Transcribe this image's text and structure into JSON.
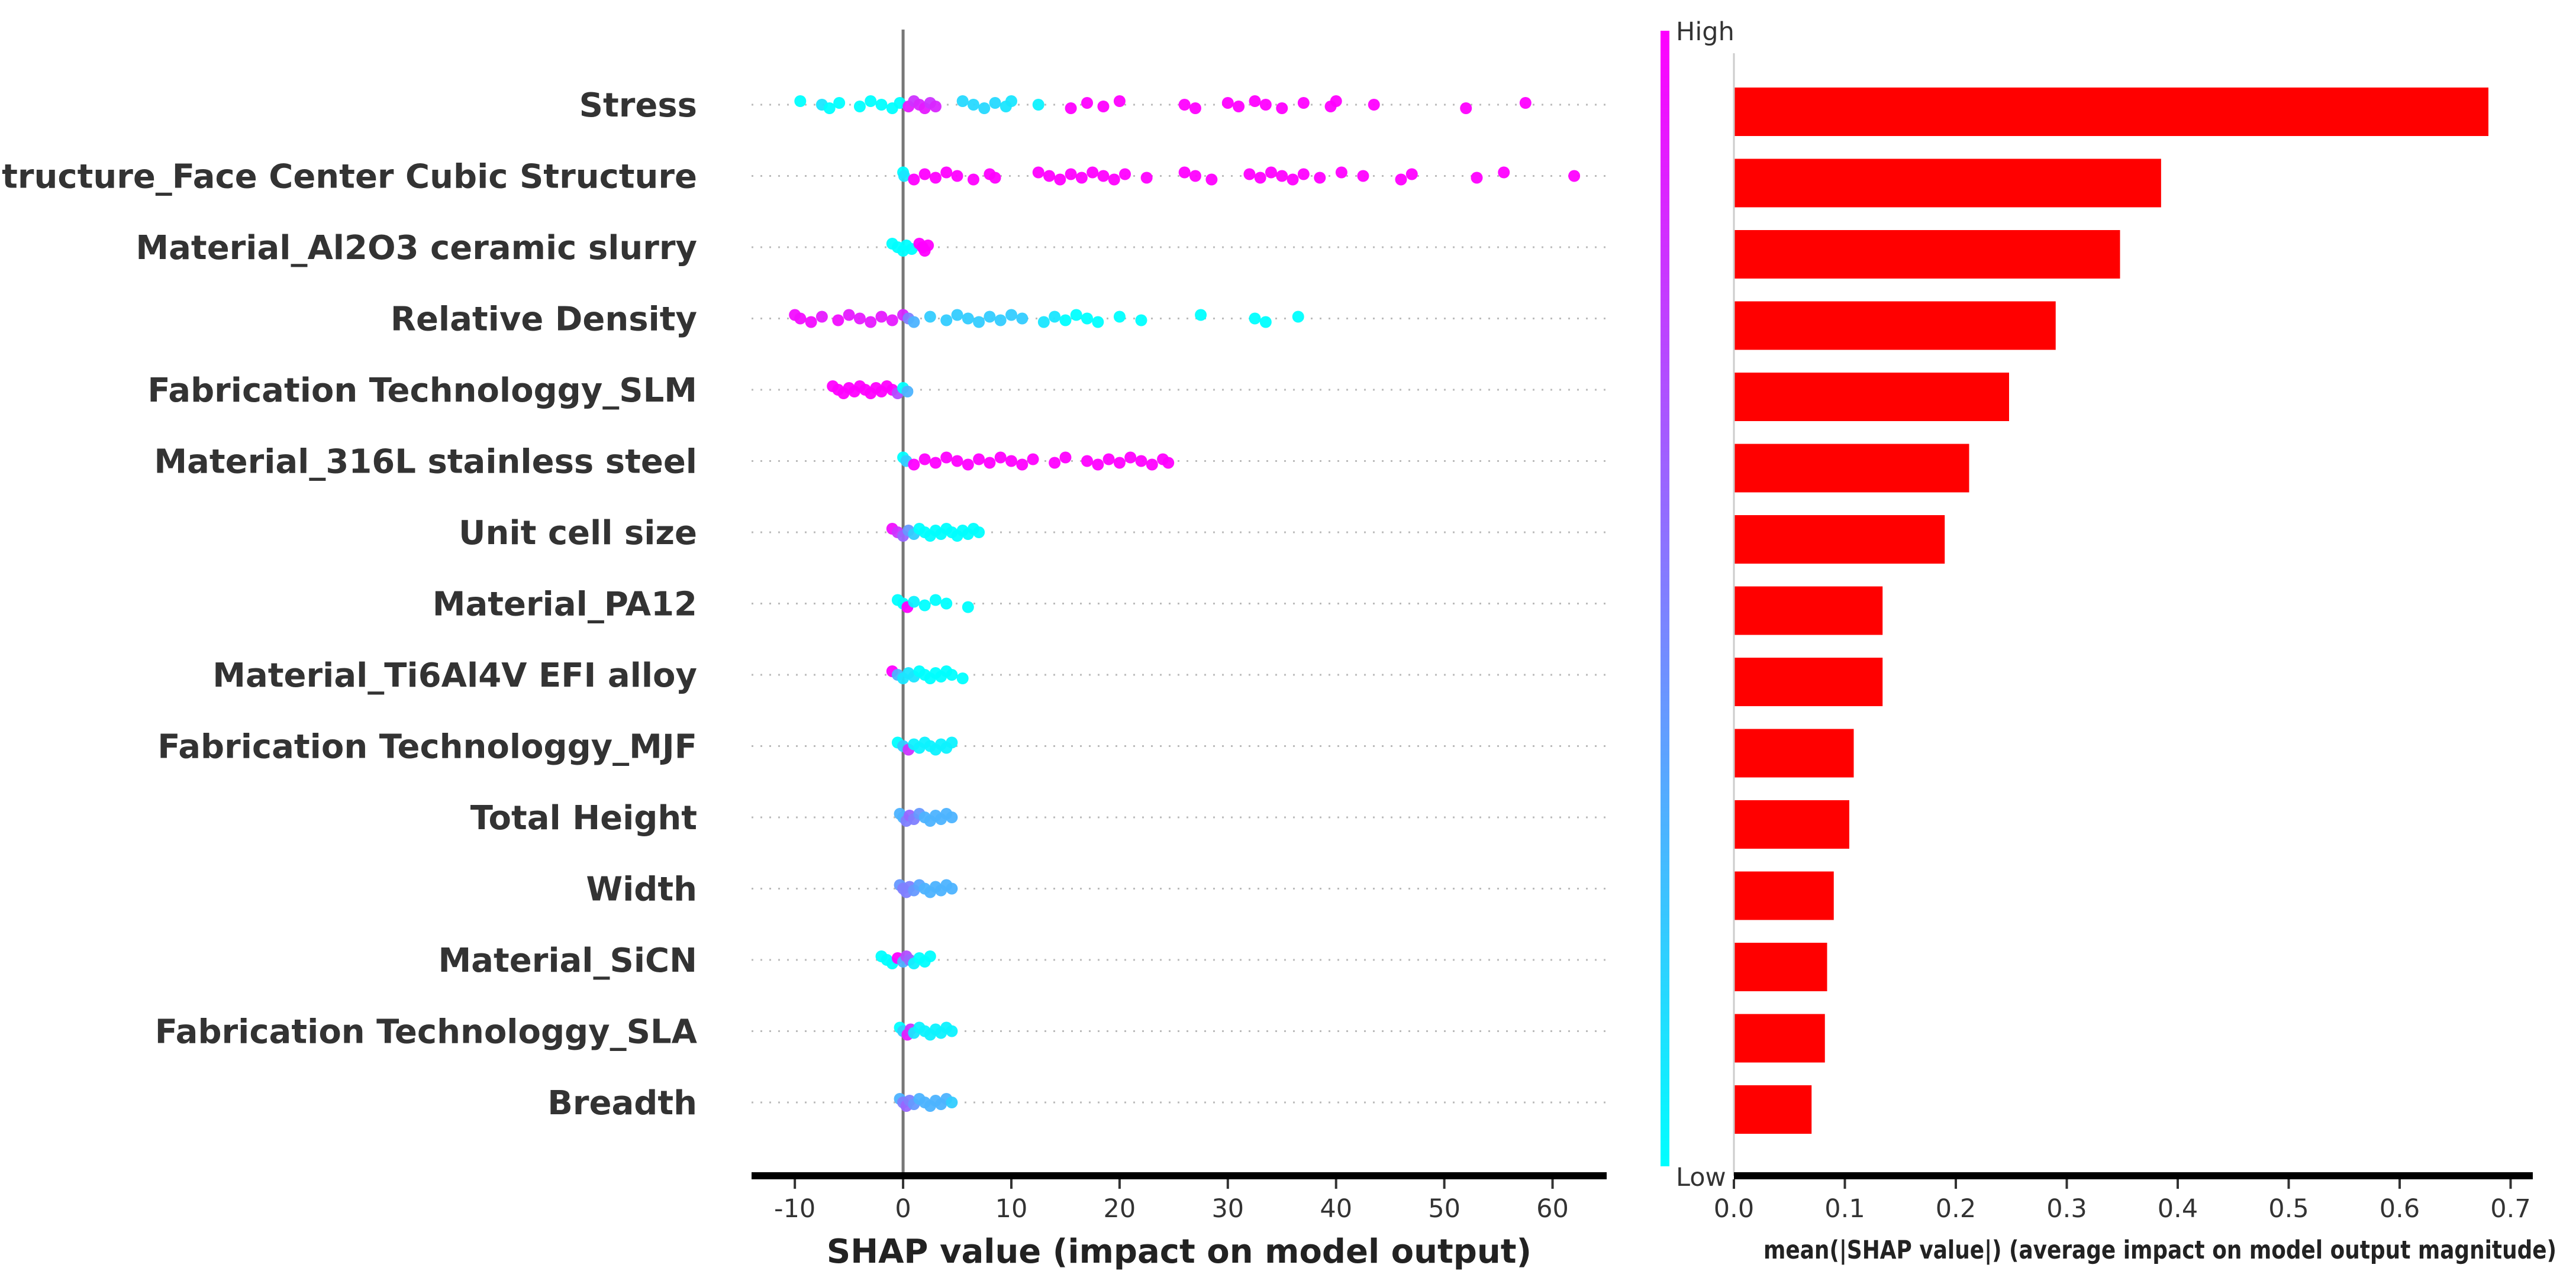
{
  "chart_data": [
    {
      "type": "scatter",
      "subtype": "shap-beeswarm",
      "title": "",
      "xlabel": "SHAP value (impact on model output)",
      "ylabel": "",
      "xlim": [
        -14,
        65
      ],
      "xticks": [
        -10,
        0,
        10,
        20,
        30,
        40,
        50,
        60
      ],
      "features": [
        "Stress",
        "Structure_Face Center Cubic Structure",
        "Material_Al2O3 ceramic slurry",
        "Relative Density",
        "Fabrication Technologgy_SLM",
        "Material_316L stainless steel",
        "Unit cell size",
        "Material_PA12",
        "Material_Ti6Al4V EFI alloy",
        "Fabrication Technologgy_MJF",
        "Total Height",
        "Width",
        "Material_SiCN",
        "Fabrication Technologgy_SLA",
        "Breadth"
      ],
      "points": [
        [
          [
            -9.5,
            0
          ],
          [
            -7.5,
            0.1
          ],
          [
            -6.8,
            0
          ],
          [
            -5.9,
            0
          ],
          [
            -4,
            0
          ],
          [
            -3,
            0
          ],
          [
            -2,
            0
          ],
          [
            -1,
            0
          ],
          [
            -0.3,
            0
          ],
          [
            0.5,
            0.9
          ],
          [
            1,
            0.8
          ],
          [
            1.5,
            0.85
          ],
          [
            2,
            0.9
          ],
          [
            2.5,
            0.8
          ],
          [
            3,
            0.85
          ],
          [
            5.5,
            0.15
          ],
          [
            6.5,
            0.15
          ],
          [
            7.5,
            0.15
          ],
          [
            8.5,
            0.15
          ],
          [
            9.5,
            0.1
          ],
          [
            10,
            0.1
          ],
          [
            12.5,
            0.05
          ],
          [
            15.5,
            1
          ],
          [
            17,
            1
          ],
          [
            18.5,
            1
          ],
          [
            20,
            1
          ],
          [
            26,
            1
          ],
          [
            27,
            1
          ],
          [
            30,
            1
          ],
          [
            31,
            1
          ],
          [
            32.5,
            1
          ],
          [
            33.5,
            1
          ],
          [
            35,
            1
          ],
          [
            37,
            1
          ],
          [
            39.5,
            1
          ],
          [
            40,
            1
          ],
          [
            43.5,
            1
          ],
          [
            52,
            1
          ],
          [
            57.5,
            1
          ]
        ],
        [
          [
            0,
            0
          ],
          [
            0.1,
            0.1
          ],
          [
            1,
            1
          ],
          [
            2,
            1
          ],
          [
            3,
            1
          ],
          [
            4,
            1
          ],
          [
            5,
            1
          ],
          [
            6.5,
            1
          ],
          [
            8,
            1
          ],
          [
            8.5,
            1
          ],
          [
            12.5,
            1
          ],
          [
            13.5,
            1
          ],
          [
            14.5,
            1
          ],
          [
            15.5,
            1
          ],
          [
            16.5,
            1
          ],
          [
            17.5,
            1
          ],
          [
            18.5,
            1
          ],
          [
            19.5,
            1
          ],
          [
            20.5,
            1
          ],
          [
            22.5,
            1
          ],
          [
            26,
            1
          ],
          [
            27,
            1
          ],
          [
            28.5,
            1
          ],
          [
            32,
            1
          ],
          [
            33,
            1
          ],
          [
            34,
            1
          ],
          [
            35,
            1
          ],
          [
            36,
            1
          ],
          [
            37,
            1
          ],
          [
            38.5,
            1
          ],
          [
            40.5,
            1
          ],
          [
            42.5,
            1
          ],
          [
            46,
            1
          ],
          [
            47,
            1
          ],
          [
            53,
            1
          ],
          [
            55.5,
            1
          ],
          [
            62,
            1
          ]
        ],
        [
          [
            -1,
            0
          ],
          [
            -0.5,
            0
          ],
          [
            0,
            0
          ],
          [
            0.3,
            0
          ],
          [
            0.8,
            0
          ],
          [
            1.5,
            1
          ],
          [
            1.8,
            1
          ],
          [
            2,
            1
          ],
          [
            2.3,
            1
          ]
        ],
        [
          [
            -10,
            0.95
          ],
          [
            -9.5,
            0.95
          ],
          [
            -8.5,
            0.95
          ],
          [
            -7.5,
            0.9
          ],
          [
            -6,
            0.95
          ],
          [
            -5,
            0.9
          ],
          [
            -4,
            0.9
          ],
          [
            -3,
            0.9
          ],
          [
            -2,
            0.9
          ],
          [
            -1,
            0.9
          ],
          [
            0,
            0.85
          ],
          [
            0.5,
            0.5
          ],
          [
            1,
            0.3
          ],
          [
            2.5,
            0.2
          ],
          [
            4,
            0.2
          ],
          [
            5,
            0.2
          ],
          [
            6,
            0.2
          ],
          [
            7,
            0.2
          ],
          [
            8,
            0.2
          ],
          [
            9,
            0.2
          ],
          [
            10,
            0.2
          ],
          [
            11,
            0.2
          ],
          [
            13,
            0.1
          ],
          [
            14,
            0.1
          ],
          [
            15,
            0
          ],
          [
            16,
            0
          ],
          [
            17,
            0
          ],
          [
            18,
            0
          ],
          [
            20,
            0
          ],
          [
            22,
            0
          ],
          [
            27.5,
            0
          ],
          [
            32.5,
            0
          ],
          [
            33.5,
            0
          ],
          [
            36.5,
            0
          ]
        ],
        [
          [
            -6.5,
            1
          ],
          [
            -6,
            1
          ],
          [
            -5.5,
            1
          ],
          [
            -5,
            1
          ],
          [
            -4.5,
            1
          ],
          [
            -4,
            1
          ],
          [
            -3.5,
            1
          ],
          [
            -3,
            1
          ],
          [
            -2.5,
            1
          ],
          [
            -2,
            1
          ],
          [
            -1.5,
            1
          ],
          [
            -1,
            1
          ],
          [
            -0.5,
            0.7
          ],
          [
            0,
            0
          ],
          [
            0.4,
            0.3
          ]
        ],
        [
          [
            0,
            0
          ],
          [
            0.3,
            0.2
          ],
          [
            1,
            1
          ],
          [
            2,
            1
          ],
          [
            3,
            1
          ],
          [
            4,
            1
          ],
          [
            5,
            1
          ],
          [
            6,
            1
          ],
          [
            7,
            1
          ],
          [
            8,
            1
          ],
          [
            9,
            1
          ],
          [
            10,
            1
          ],
          [
            11,
            1
          ],
          [
            12,
            1
          ],
          [
            14,
            1
          ],
          [
            15,
            1
          ],
          [
            17,
            1
          ],
          [
            18,
            1
          ],
          [
            19,
            1
          ],
          [
            20,
            1
          ],
          [
            21,
            1
          ],
          [
            22,
            1
          ],
          [
            23,
            1
          ],
          [
            24,
            1
          ],
          [
            24.5,
            1
          ]
        ],
        [
          [
            -1,
            0.95
          ],
          [
            -0.5,
            0.8
          ],
          [
            0,
            0.6
          ],
          [
            0.5,
            0.4
          ],
          [
            1,
            0.2
          ],
          [
            1.5,
            0
          ],
          [
            2,
            0
          ],
          [
            2.5,
            0
          ],
          [
            3,
            0
          ],
          [
            3.5,
            0
          ],
          [
            4,
            0
          ],
          [
            4.5,
            0
          ],
          [
            5,
            0
          ],
          [
            5.5,
            0
          ],
          [
            6,
            0
          ],
          [
            6.5,
            0
          ],
          [
            7,
            0
          ]
        ],
        [
          [
            -0.5,
            0
          ],
          [
            0,
            0
          ],
          [
            0.4,
            1
          ],
          [
            1,
            0.05
          ],
          [
            2,
            0
          ],
          [
            3,
            0
          ],
          [
            4,
            0
          ],
          [
            6,
            0
          ]
        ],
        [
          [
            -1,
            1
          ],
          [
            -0.5,
            0.3
          ],
          [
            0,
            0.1
          ],
          [
            0.5,
            0.1
          ],
          [
            1,
            0.1
          ],
          [
            1.5,
            0
          ],
          [
            2,
            0
          ],
          [
            2.5,
            0
          ],
          [
            3,
            0
          ],
          [
            3.5,
            0
          ],
          [
            4,
            0
          ],
          [
            4.5,
            0
          ],
          [
            5.5,
            0
          ]
        ],
        [
          [
            -0.5,
            0
          ],
          [
            0,
            0.2
          ],
          [
            0.5,
            0.8
          ],
          [
            1,
            0.05
          ],
          [
            1.5,
            0.05
          ],
          [
            2,
            0.05
          ],
          [
            2.5,
            0.05
          ],
          [
            3,
            0.05
          ],
          [
            3.5,
            0.05
          ],
          [
            4,
            0.05
          ],
          [
            4.5,
            0.05
          ]
        ],
        [
          [
            -0.3,
            0.3
          ],
          [
            0,
            0.3
          ],
          [
            0.3,
            0.5
          ],
          [
            0.6,
            0.6
          ],
          [
            1,
            0.5
          ],
          [
            1.5,
            0.4
          ],
          [
            2,
            0.3
          ],
          [
            2.5,
            0.3
          ],
          [
            3,
            0.3
          ],
          [
            3.5,
            0.3
          ],
          [
            4,
            0.3
          ],
          [
            4.5,
            0.3
          ]
        ],
        [
          [
            -0.3,
            0.4
          ],
          [
            0,
            0.5
          ],
          [
            0.3,
            0.5
          ],
          [
            0.6,
            0.5
          ],
          [
            1,
            0.4
          ],
          [
            1.5,
            0.35
          ],
          [
            2,
            0.3
          ],
          [
            2.5,
            0.3
          ],
          [
            3,
            0.3
          ],
          [
            3.5,
            0.3
          ],
          [
            4,
            0.3
          ],
          [
            4.5,
            0.3
          ]
        ],
        [
          [
            -2,
            0
          ],
          [
            -1.5,
            0
          ],
          [
            -1,
            0
          ],
          [
            -0.5,
            1
          ],
          [
            0,
            0.3
          ],
          [
            0.3,
            0.7
          ],
          [
            0.6,
            0.6
          ],
          [
            1,
            0.05
          ],
          [
            1.5,
            0
          ],
          [
            2,
            0
          ],
          [
            2.5,
            0
          ]
        ],
        [
          [
            -0.3,
            0
          ],
          [
            0,
            0.2
          ],
          [
            0.4,
            0.9
          ],
          [
            0.7,
            0.8
          ],
          [
            1,
            0.1
          ],
          [
            1.5,
            0.05
          ],
          [
            2,
            0.05
          ],
          [
            2.5,
            0.05
          ],
          [
            3,
            0.05
          ],
          [
            3.5,
            0.05
          ],
          [
            4,
            0.05
          ],
          [
            4.5,
            0.05
          ]
        ],
        [
          [
            -0.3,
            0.3
          ],
          [
            0,
            0.5
          ],
          [
            0.3,
            0.6
          ],
          [
            0.6,
            0.5
          ],
          [
            1,
            0.4
          ],
          [
            1.5,
            0.3
          ],
          [
            2,
            0.3
          ],
          [
            2.5,
            0.3
          ],
          [
            3,
            0.3
          ],
          [
            3.5,
            0.3
          ],
          [
            4,
            0.3
          ],
          [
            4.5,
            0.2
          ]
        ]
      ],
      "colorbar": {
        "label_high": "High",
        "label_low": "Low",
        "color_high": "#ff00ff",
        "color_low": "#00ffff"
      }
    },
    {
      "type": "bar",
      "orientation": "horizontal",
      "title": "",
      "xlabel": "mean(|SHAP value|) (average impact on model output magnitude)",
      "ylabel": "",
      "xlim": [
        0,
        0.72
      ],
      "xticks": [
        "0.0",
        "0.1",
        "0.2",
        "0.3",
        "0.4",
        "0.5",
        "0.6",
        "0.7"
      ],
      "categories": [
        "Stress",
        "Structure_Face Center Cubic Structure",
        "Material_Al2O3 ceramic slurry",
        "Relative Density",
        "Fabrication Technologgy_SLM",
        "Material_316L stainless steel",
        "Unit cell size",
        "Material_PA12",
        "Material_Ti6Al4V EFI alloy",
        "Fabrication Technologgy_MJF",
        "Total Height",
        "Width",
        "Material_SiCN",
        "Fabrication Technologgy_SLA",
        "Breadth"
      ],
      "values": [
        0.68,
        0.385,
        0.348,
        0.29,
        0.248,
        0.212,
        0.19,
        0.134,
        0.134,
        0.108,
        0.104,
        0.09,
        0.084,
        0.082,
        0.07
      ],
      "bar_color": "#ff0000"
    }
  ]
}
